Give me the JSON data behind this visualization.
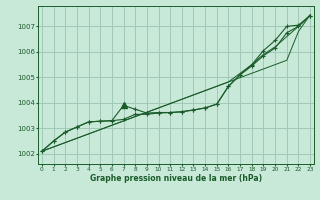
{
  "xlabel": "Graphe pression niveau de la mer (hPa)",
  "bg_color": "#c8e8d8",
  "grid_color": "#a0c8b8",
  "line_color": "#1a5c2a",
  "x_ticks": [
    0,
    1,
    2,
    3,
    4,
    5,
    6,
    7,
    8,
    9,
    10,
    11,
    12,
    13,
    14,
    15,
    16,
    17,
    18,
    19,
    20,
    21,
    22,
    23
  ],
  "y_ticks": [
    1002,
    1003,
    1004,
    1005,
    1006,
    1007
  ],
  "ylim": [
    1001.6,
    1007.8
  ],
  "xlim": [
    -0.3,
    23.3
  ],
  "straight1": [
    1002.1,
    1002.27,
    1002.44,
    1002.61,
    1002.78,
    1002.95,
    1003.12,
    1003.29,
    1003.46,
    1003.63,
    1003.8,
    1003.97,
    1004.14,
    1004.31,
    1004.48,
    1004.65,
    1004.82,
    1004.99,
    1005.16,
    1005.33,
    1005.5,
    1005.67,
    1006.8,
    1007.45
  ],
  "straight2": [
    1002.1,
    1002.27,
    1002.44,
    1002.61,
    1002.78,
    1002.95,
    1003.12,
    1003.29,
    1003.46,
    1003.63,
    1003.8,
    1003.97,
    1004.14,
    1004.31,
    1004.48,
    1004.65,
    1004.82,
    1005.16,
    1005.5,
    1005.9,
    1006.2,
    1006.6,
    1007.0,
    1007.45
  ],
  "curve_markers": [
    1002.1,
    1002.5,
    1002.85,
    1003.05,
    1003.25,
    1003.28,
    1003.3,
    1003.35,
    1003.55,
    1003.55,
    1003.6,
    1003.62,
    1003.65,
    1003.72,
    1003.8,
    1003.95,
    1004.65,
    1005.1,
    1005.45,
    1005.85,
    1006.15,
    1006.75,
    1007.0,
    1007.42
  ],
  "curve_peak": [
    1002.1,
    1002.5,
    1002.85,
    1003.05,
    1003.25,
    1003.28,
    1003.3,
    1003.9,
    1003.75,
    1003.6,
    1003.62,
    1003.62,
    1003.65,
    1003.72,
    1003.8,
    1003.95,
    1004.65,
    1005.1,
    1005.5,
    1006.05,
    1006.45,
    1007.0,
    1007.05,
    1007.42
  ]
}
